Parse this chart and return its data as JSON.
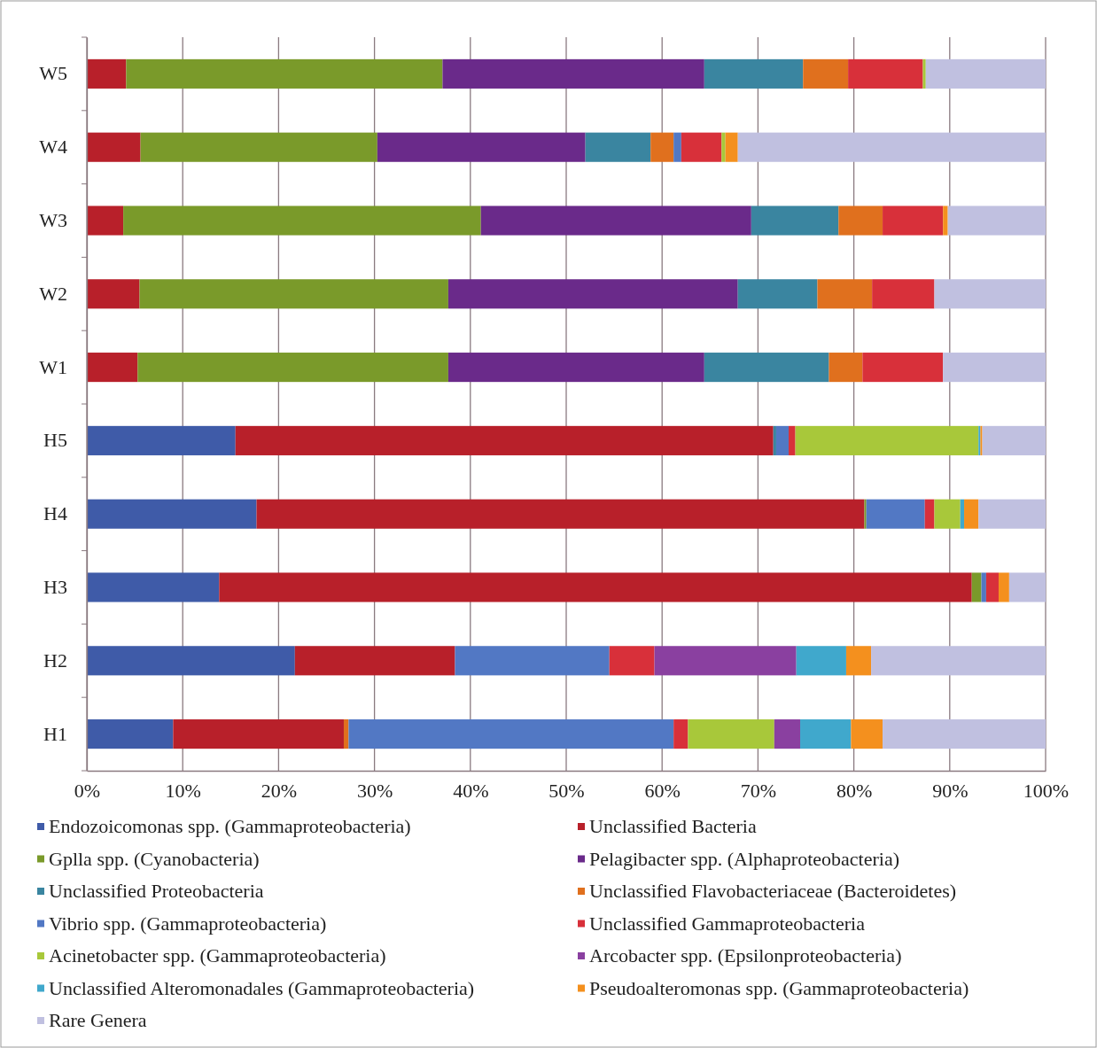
{
  "chart_data": {
    "type": "bar",
    "orientation": "horizontal",
    "stacked": true,
    "grid": "x",
    "legend": "bottom",
    "categories": [
      "W5",
      "W4",
      "W3",
      "W2",
      "W1",
      "H5",
      "H4",
      "H3",
      "H2",
      "H1"
    ],
    "xlim": [
      0,
      100
    ],
    "xticks": [
      {
        "value": 0,
        "label": "0%"
      },
      {
        "value": 10,
        "label": "10%"
      },
      {
        "value": 20,
        "label": "20%"
      },
      {
        "value": 30,
        "label": "30%"
      },
      {
        "value": 40,
        "label": "40%"
      },
      {
        "value": 50,
        "label": "50%"
      },
      {
        "value": 60,
        "label": "60%"
      },
      {
        "value": 70,
        "label": "70%"
      },
      {
        "value": 80,
        "label": "80%"
      },
      {
        "value": 90,
        "label": "90%"
      },
      {
        "value": 100,
        "label": "100%"
      }
    ],
    "series": [
      {
        "name": "Endozoicomonas spp. (Gammaproteobacteria)",
        "color": "#3f5ba8",
        "values": [
          0,
          0,
          0,
          0,
          0,
          15.5,
          17.7,
          13.8,
          21.7,
          9.0
        ]
      },
      {
        "name": "Unclassified Bacteria",
        "color": "#b8202a",
        "values": [
          4.1,
          5.6,
          3.8,
          5.5,
          5.3,
          56.1,
          63.4,
          78.5,
          16.7,
          17.8
        ]
      },
      {
        "name": "Gplla spp. (Cyanobacteria)",
        "color": "#7a9a2a",
        "values": [
          33.0,
          24.7,
          37.3,
          32.2,
          32.4,
          0,
          0.2,
          1.0,
          0,
          0
        ]
      },
      {
        "name": "Pelagibacter spp. (Alphaproteobacteria)",
        "color": "#6a2a8a",
        "values": [
          27.3,
          21.7,
          28.2,
          30.2,
          26.7,
          0,
          0,
          0,
          0,
          0
        ]
      },
      {
        "name": "Unclassified Proteobacteria",
        "color": "#3a85a0",
        "values": [
          10.3,
          6.8,
          9.1,
          8.3,
          13.0,
          0.3,
          0,
          0,
          0,
          0
        ]
      },
      {
        "name": "Unclassified Flavobacteriaceae (Bacteroidetes)",
        "color": "#e0701e",
        "values": [
          4.7,
          2.4,
          4.6,
          5.7,
          3.5,
          0,
          0,
          0,
          0,
          0.5
        ]
      },
      {
        "name": "Vibrio spp. (Gammaproteobacteria)",
        "color": "#5278c4",
        "values": [
          0,
          0.8,
          0,
          0,
          0,
          1.3,
          6.1,
          0.5,
          16.1,
          33.9
        ]
      },
      {
        "name": "Unclassified Gammaproteobacteria",
        "color": "#d8303a",
        "values": [
          7.8,
          4.2,
          6.3,
          6.5,
          8.4,
          0.7,
          1.0,
          1.3,
          4.7,
          1.5
        ]
      },
      {
        "name": "Acinetobacter spp. (Gammaproteobacteria)",
        "color": "#a8c83a",
        "values": [
          0.3,
          0.4,
          0,
          0,
          0,
          19.1,
          2.7,
          0,
          0,
          9.0
        ]
      },
      {
        "name": "Arcobacter spp. (Epsilonproteobacteria)",
        "color": "#8a40a0",
        "values": [
          0,
          0,
          0,
          0,
          0,
          0,
          0,
          0,
          14.8,
          2.7
        ]
      },
      {
        "name": "Unclassified Alteromonadales (Gammaproteobacteria)",
        "color": "#40a8cc",
        "values": [
          0,
          0,
          0,
          0,
          0,
          0.2,
          0.4,
          0,
          5.2,
          5.3
        ]
      },
      {
        "name": "Pseudoalteromonas spp. (Gammaproteobacteria)",
        "color": "#f4901e",
        "values": [
          0,
          1.3,
          0.5,
          0,
          0,
          0.2,
          1.5,
          1.1,
          2.6,
          3.3
        ]
      },
      {
        "name": "Rare Genera",
        "color": "#c0c0e0",
        "values": [
          12.5,
          32.1,
          10.2,
          11.6,
          10.7,
          6.6,
          7.0,
          3.8,
          18.2,
          17.0
        ]
      }
    ]
  }
}
